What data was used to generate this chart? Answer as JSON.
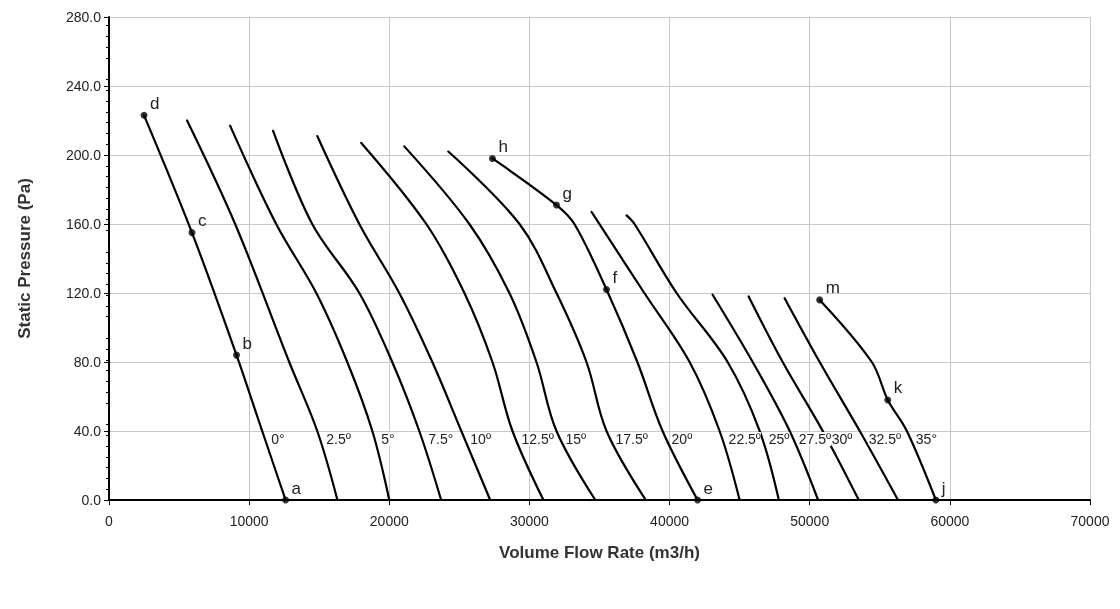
{
  "chart_data": {
    "type": "line",
    "xlabel": "Volume Flow Rate (m3/h)",
    "ylabel": "Static Pressure (Pa)",
    "xlim": [
      0,
      70000
    ],
    "xticks": [
      0,
      10000,
      20000,
      30000,
      40000,
      50000,
      60000,
      70000
    ],
    "ylim": [
      0,
      280
    ],
    "yticks": [
      {
        "value": 0,
        "label": "0.0"
      },
      {
        "value": 40,
        "label": "40.0"
      },
      {
        "value": 80,
        "label": "80.0"
      },
      {
        "value": 120,
        "label": "120.0"
      },
      {
        "value": 160,
        "label": "160.0"
      },
      {
        "value": 200,
        "label": "200.0"
      },
      {
        "value": 240,
        "label": "240.0"
      },
      {
        "value": 280,
        "label": "280.0"
      }
    ],
    "grid": true,
    "marker": "none",
    "line_style": "solid",
    "series": [
      {
        "color": "#000000",
        "x": [
          2500,
          5920,
          9100,
          10930,
          12600
        ],
        "values": [
          223,
          155,
          84,
          40,
          0
        ]
      },
      {
        "color": "#000000",
        "x": [
          5570,
          9000,
          12860,
          14860,
          16300
        ],
        "values": [
          220,
          160,
          80,
          40,
          0
        ]
      },
      {
        "color": "#000000",
        "x": [
          8640,
          11930,
          14790,
          17000,
          18790,
          20000
        ],
        "values": [
          217,
          160,
          120,
          80,
          40,
          0
        ]
      },
      {
        "color": "#000000",
        "x": [
          11710,
          14500,
          17860,
          20210,
          22140,
          23700
        ],
        "values": [
          214,
          160,
          120,
          80,
          40,
          0
        ]
      },
      {
        "color": "#000000",
        "x": [
          14860,
          17860,
          20710,
          23070,
          25140,
          27200
        ],
        "values": [
          211,
          160,
          120,
          80,
          40,
          0
        ]
      },
      {
        "color": "#000000",
        "x": [
          18000,
          22640,
          25360,
          27360,
          28790,
          31000
        ],
        "values": [
          207,
          160,
          120,
          80,
          40,
          0
        ]
      },
      {
        "color": "#000000",
        "x": [
          21070,
          25710,
          28570,
          30500,
          31930,
          34700
        ],
        "values": [
          205,
          160,
          120,
          80,
          40,
          0
        ]
      },
      {
        "color": "#000000",
        "x": [
          24210,
          29290,
          31930,
          34070,
          35500,
          38300
        ],
        "values": [
          202,
          160,
          120,
          80,
          40,
          0
        ]
      },
      {
        "color": "#000000",
        "x": [
          27360,
          31930,
          33210,
          35500,
          37700,
          39500,
          42000
        ],
        "values": [
          198,
          171,
          160,
          122,
          80,
          40,
          0
        ]
      },
      {
        "color": "#000000",
        "x": [
          34430,
          38200,
          41430,
          43570,
          45000
        ],
        "values": [
          167,
          120,
          80,
          40,
          0
        ]
      },
      {
        "color": "#000000",
        "x": [
          36930,
          37500,
          40500,
          44140,
          46430,
          47800
        ],
        "values": [
          165,
          160,
          120,
          80,
          40,
          0
        ]
      },
      {
        "color": "#000000",
        "x": [
          43070,
          45930,
          48570,
          50600
        ],
        "values": [
          119,
          80,
          40,
          0
        ]
      },
      {
        "color": "#000000",
        "x": [
          45640,
          48070,
          50930,
          53500
        ],
        "values": [
          118,
          80,
          40,
          0
        ]
      },
      {
        "color": "#000000",
        "x": [
          48210,
          50710,
          53570,
          56300
        ],
        "values": [
          117,
          80,
          40,
          0
        ]
      },
      {
        "color": "#000000",
        "x": [
          50710,
          54430,
          55570,
          56930,
          59000
        ],
        "values": [
          116,
          80,
          58,
          40,
          0
        ]
      },
      {
        "type": "scatter",
        "marker": "circle",
        "color": "#000000",
        "x": [
          12600,
          9100,
          5920,
          2500,
          42000,
          35500,
          31930,
          27360,
          59000,
          55570,
          50710
        ],
        "values": [
          0,
          84,
          155,
          223,
          0,
          122,
          171,
          198,
          0,
          58,
          116
        ]
      }
    ],
    "annotations": [
      {
        "text": "a",
        "x": 12600,
        "y": 0
      },
      {
        "text": "b",
        "x": 9100,
        "y": 84
      },
      {
        "text": "c",
        "x": 5920,
        "y": 155
      },
      {
        "text": "d",
        "x": 2500,
        "y": 223
      },
      {
        "text": "e",
        "x": 42000,
        "y": 0
      },
      {
        "text": "f",
        "x": 35500,
        "y": 122
      },
      {
        "text": "g",
        "x": 31930,
        "y": 171
      },
      {
        "text": "h",
        "x": 27360,
        "y": 198
      },
      {
        "text": "j",
        "x": 59000,
        "y": 0
      },
      {
        "text": "k",
        "x": 55570,
        "y": 58
      },
      {
        "text": "m",
        "x": 50710,
        "y": 116
      },
      {
        "text": "0°",
        "x": 10930,
        "y": 40
      },
      {
        "text": "2.5º",
        "x": 14860,
        "y": 40
      },
      {
        "text": "5°",
        "x": 18790,
        "y": 40
      },
      {
        "text": "7.5°",
        "x": 22140,
        "y": 40
      },
      {
        "text": "10º",
        "x": 25140,
        "y": 40
      },
      {
        "text": "12.5º",
        "x": 28790,
        "y": 40
      },
      {
        "text": "15º",
        "x": 31930,
        "y": 40
      },
      {
        "text": "17.5º",
        "x": 35500,
        "y": 40
      },
      {
        "text": "20º",
        "x": 39500,
        "y": 40
      },
      {
        "text": "22.5º",
        "x": 43570,
        "y": 40
      },
      {
        "text": "25º",
        "x": 46430,
        "y": 40
      },
      {
        "text": "27.5º",
        "x": 48570,
        "y": 40
      },
      {
        "text": "30º",
        "x": 50930,
        "y": 40
      },
      {
        "text": "32.5º",
        "x": 53570,
        "y": 40
      },
      {
        "text": "35°",
        "x": 56930,
        "y": 40
      }
    ]
  }
}
